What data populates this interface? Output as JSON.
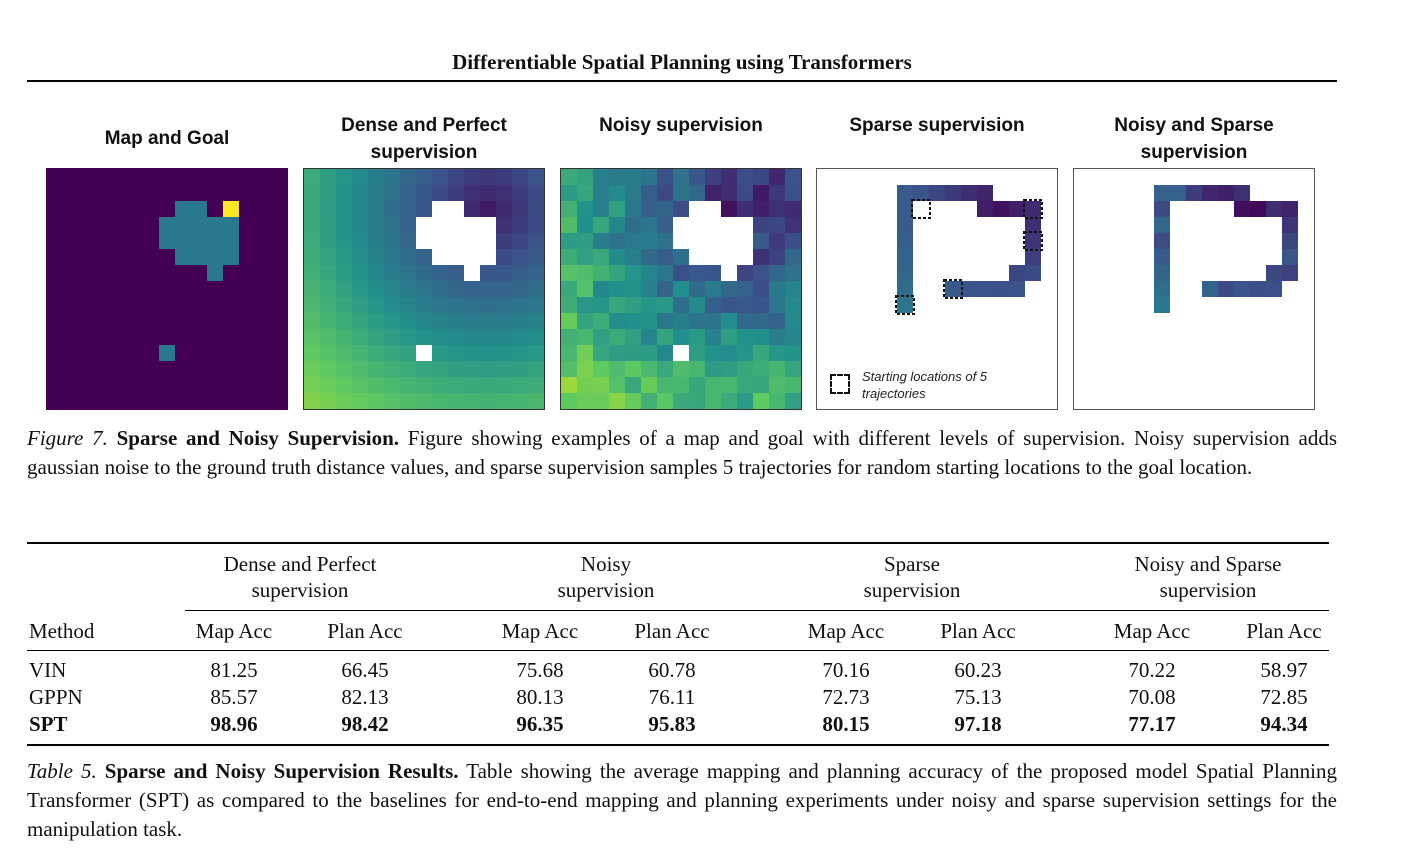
{
  "header": {
    "title": "Differentiable Spatial Planning using Transformers"
  },
  "figure": {
    "panels": [
      {
        "title": "Map and Goal"
      },
      {
        "title": "Dense and Perfect supervision"
      },
      {
        "title": "Noisy supervision"
      },
      {
        "title": "Sparse supervision"
      },
      {
        "title": "Noisy and Sparse supervision"
      }
    ],
    "legend": "Starting locations of 5 trajectories",
    "colors": {
      "dark": "#440154",
      "teal": "#2a788e",
      "yellow": "#fde725",
      "green": "#7ad151"
    }
  },
  "figure_caption": {
    "label": "Figure 7.",
    "title": "Sparse and Noisy Supervision.",
    "text": "Figure showing examples of a map and goal with different levels of supervision. Noisy supervision adds gaussian noise to the ground truth distance values, and sparse supervision samples 5 trajectories for random starting locations to the goal location."
  },
  "table": {
    "groups": [
      "Dense and Perfect",
      "supervision",
      "Noisy",
      "supervision",
      "Sparse",
      "supervision",
      "Noisy and Sparse",
      "supervision"
    ],
    "method_header": "Method",
    "sub_headers": [
      "Map Acc",
      "Plan Acc",
      "Map Acc",
      "Plan Acc",
      "Map Acc",
      "Plan Acc",
      "Map Acc",
      "Plan Acc"
    ],
    "rows": [
      {
        "method": "VIN",
        "values": [
          "81.25",
          "66.45",
          "75.68",
          "60.78",
          "70.16",
          "60.23",
          "70.22",
          "58.97"
        ]
      },
      {
        "method": "GPPN",
        "values": [
          "85.57",
          "82.13",
          "80.13",
          "76.11",
          "72.73",
          "75.13",
          "70.08",
          "72.85"
        ]
      },
      {
        "method": "SPT",
        "values": [
          "98.96",
          "98.42",
          "96.35",
          "95.83",
          "80.15",
          "97.18",
          "77.17",
          "94.34"
        ]
      }
    ]
  },
  "table_caption": {
    "label": "Table 5.",
    "title": "Sparse and Noisy Supervision Results.",
    "text": "Table showing the average mapping and planning accuracy of the proposed model Spatial Planning Transformer (SPT) as compared to the baselines for end-to-end mapping and planning experiments under noisy and sparse supervision settings for the manipulation task."
  }
}
